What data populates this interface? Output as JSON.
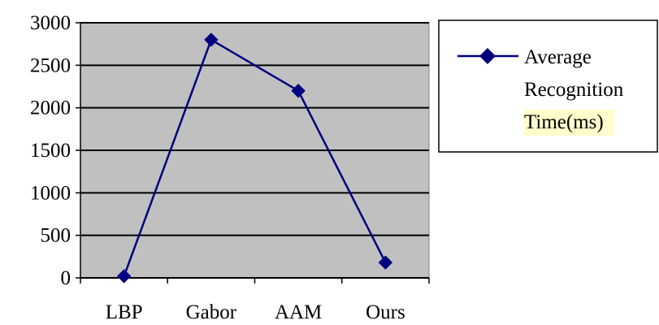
{
  "chart_data": {
    "type": "line",
    "categories": [
      "LBP",
      "Gabor",
      "AAM",
      "Ours"
    ],
    "series": [
      {
        "name": "Average Recognition Time(ms)",
        "values": [
          20,
          2800,
          2200,
          180
        ]
      }
    ],
    "ylim": [
      0,
      3000
    ],
    "yticks": [
      0,
      500,
      1000,
      1500,
      2000,
      2500,
      3000
    ],
    "ytick_labels": [
      "0",
      "500",
      "1000",
      "1500",
      "2000",
      "2500",
      "3000"
    ],
    "grid": "horizontal",
    "legend": {
      "placement": "right",
      "lines": [
        "Average",
        "Recognition",
        "Time(ms)"
      ]
    },
    "colors": {
      "plot_background": "#c0c0c0",
      "series_line": "#000080",
      "gridline": "#000000",
      "legend_highlight": "#ffffcc"
    },
    "markers": "diamond"
  }
}
